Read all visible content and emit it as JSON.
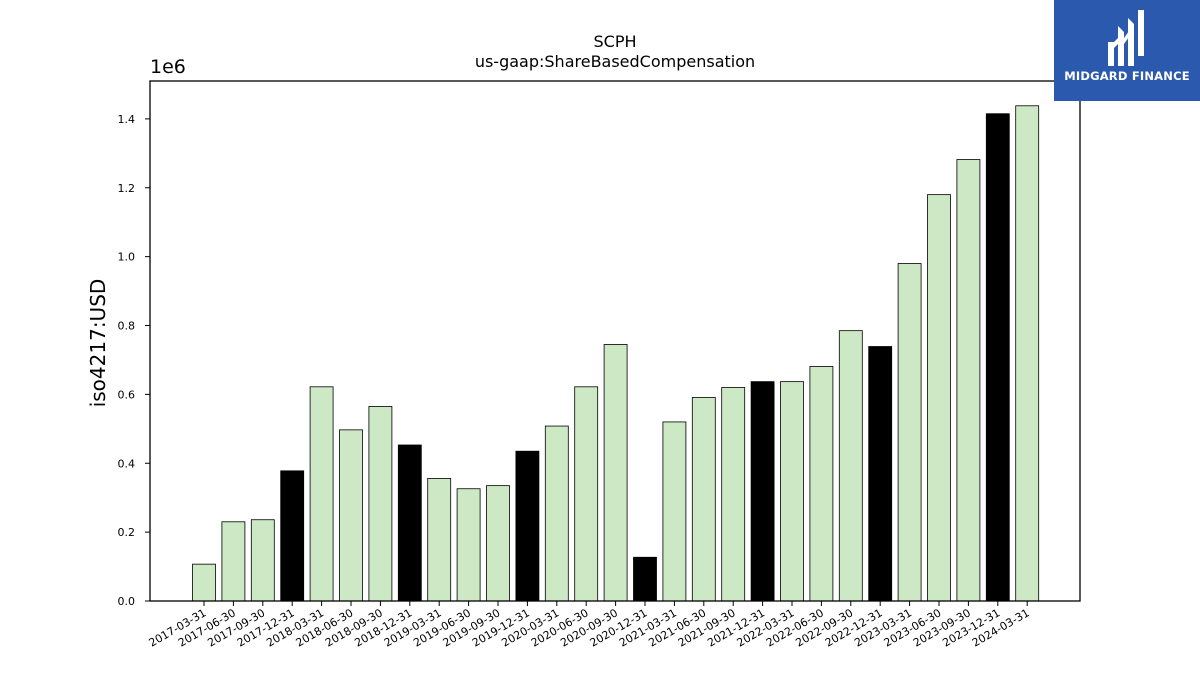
{
  "chart_data": {
    "type": "bar",
    "title": "SCPH",
    "subtitle": "us-gaap:ShareBasedCompensation",
    "ylabel": "iso4217:USD",
    "xlabel": "",
    "y_exponent_label": "1e6",
    "ylim": [
      0,
      1510000
    ],
    "yticks": [
      "0.0",
      "0.2",
      "0.4",
      "0.6",
      "0.8",
      "1.0",
      "1.2",
      "1.4"
    ],
    "ytick_values": [
      0,
      200000,
      400000,
      600000,
      800000,
      1000000,
      1200000,
      1400000
    ],
    "categories": [
      "2017-03-31",
      "2017-06-30",
      "2017-09-30",
      "2017-12-31",
      "2018-03-31",
      "2018-06-30",
      "2018-09-30",
      "2018-12-31",
      "2019-03-31",
      "2019-06-30",
      "2019-09-30",
      "2019-12-31",
      "2020-03-31",
      "2020-06-30",
      "2020-09-30",
      "2020-12-31",
      "2021-03-31",
      "2021-06-30",
      "2021-09-30",
      "2021-12-31",
      "2022-03-31",
      "2022-06-30",
      "2022-09-30",
      "2022-12-31",
      "2023-03-31",
      "2023-06-30",
      "2023-09-30",
      "2023-12-31",
      "2024-03-31"
    ],
    "values": [
      107000,
      230000,
      236000,
      378000,
      622000,
      497000,
      565000,
      453000,
      356000,
      326000,
      335000,
      435000,
      508000,
      622000,
      745000,
      127000,
      520000,
      591000,
      620000,
      637000,
      637000,
      681000,
      785000,
      739000,
      980000,
      1180000,
      1282000,
      1415000,
      1438000
    ],
    "bar_colors": [
      "#cce8c4",
      "#cce8c4",
      "#cce8c4",
      "#000000",
      "#cce8c4",
      "#cce8c4",
      "#cce8c4",
      "#000000",
      "#cce8c4",
      "#cce8c4",
      "#cce8c4",
      "#000000",
      "#cce8c4",
      "#cce8c4",
      "#cce8c4",
      "#000000",
      "#cce8c4",
      "#cce8c4",
      "#cce8c4",
      "#000000",
      "#cce8c4",
      "#cce8c4",
      "#cce8c4",
      "#000000",
      "#cce8c4",
      "#cce8c4",
      "#cce8c4",
      "#000000",
      "#cce8c4"
    ],
    "grid": false,
    "legend": "none"
  },
  "logo": {
    "text": "MIDGARD FINANCE",
    "background": "#2b59ad"
  }
}
